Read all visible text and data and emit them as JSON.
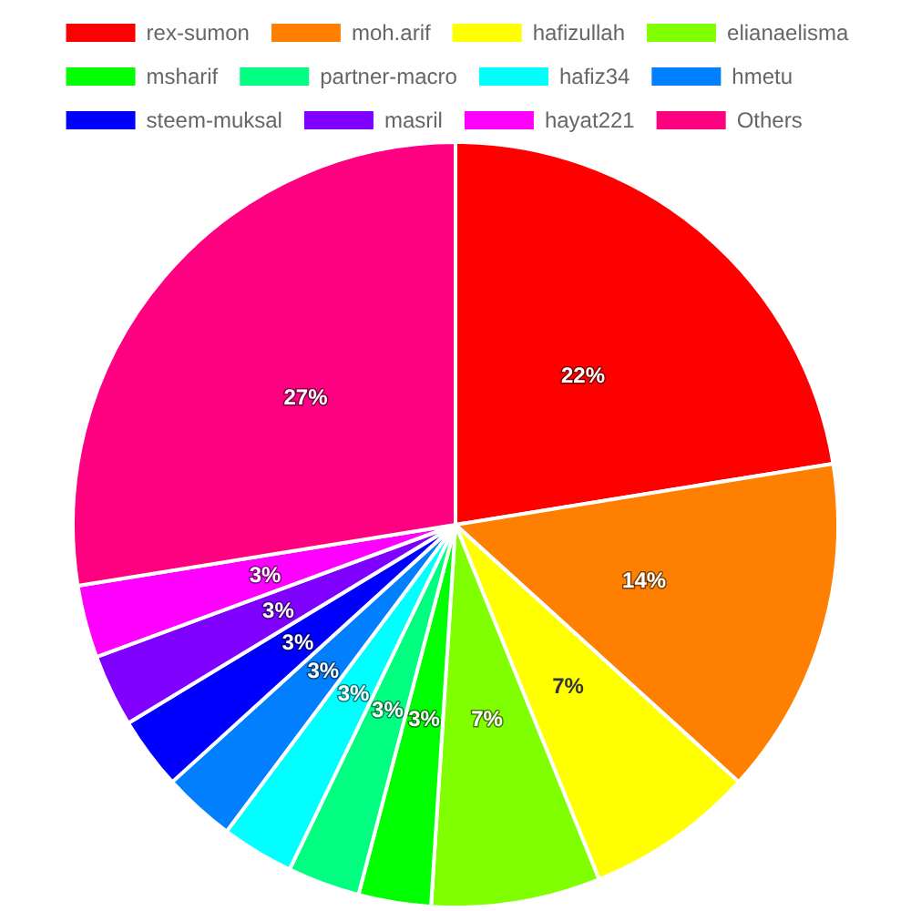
{
  "chart_data": {
    "type": "pie",
    "categories": [
      "rex-sumon",
      "moh.arif",
      "hafizullah",
      "elianaelisma",
      "msharif",
      "partner-macro",
      "hafiz34",
      "hmetu",
      "steem-muksal",
      "masril",
      "hayat221",
      "Others"
    ],
    "values": [
      22,
      14,
      7,
      7,
      3,
      3,
      3,
      3,
      3,
      3,
      3,
      27
    ],
    "value_labels": [
      "22%",
      "14%",
      "7%",
      "7%",
      "3%",
      "3%",
      "3%",
      "3%",
      "3%",
      "3%",
      "3%",
      "27%"
    ],
    "colors": [
      "#ff0000",
      "#ff8000",
      "#ffff00",
      "#80ff00",
      "#00ff00",
      "#00ff80",
      "#00ffff",
      "#0080ff",
      "#0000ff",
      "#8000ff",
      "#ff00ff",
      "#ff0080"
    ],
    "legend": "top"
  }
}
